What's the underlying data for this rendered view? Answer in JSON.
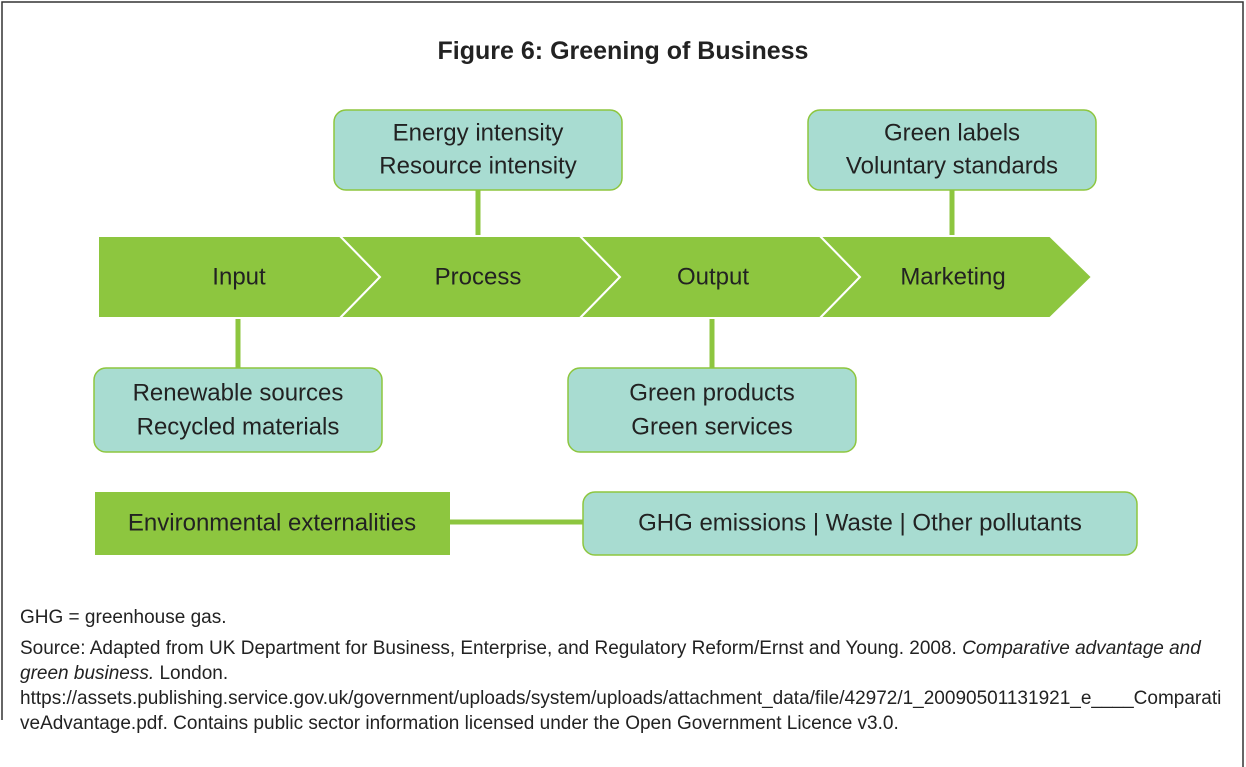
{
  "title": {
    "label": "Figure 6:",
    "text": "Greening of Business"
  },
  "stages": [
    "Input",
    "Process",
    "Output",
    "Marketing"
  ],
  "boxes": [
    {
      "lines": [
        "Energy intensity",
        "Resource intensity"
      ]
    },
    {
      "lines": [
        "Green labels",
        "Voluntary standards"
      ]
    },
    {
      "lines": [
        "Renewable sources",
        "Recycled materials"
      ]
    },
    {
      "lines": [
        "Green products",
        "Green services"
      ]
    }
  ],
  "externalities": {
    "label": "Environmental externalities",
    "items": "GHG emissions | Waste | Other pollutants"
  },
  "notes": {
    "abbreviation": "GHG = greenhouse gas.",
    "source_prefix": "Source: Adapted from UK Department for Business, Enterprise, and Regulatory Reform/Ernst and Young. 2008.",
    "source_title": "Comparative advantage and green business.",
    "source_rest": "London. https://assets.publishing.service.gov.uk/government/uploads/system/uploads/attachment_data/file/42972/1_20090501131921_e____ComparativeAdvantage.pdf. Contains public sector information licensed under the Open Government Licence v3.0."
  }
}
